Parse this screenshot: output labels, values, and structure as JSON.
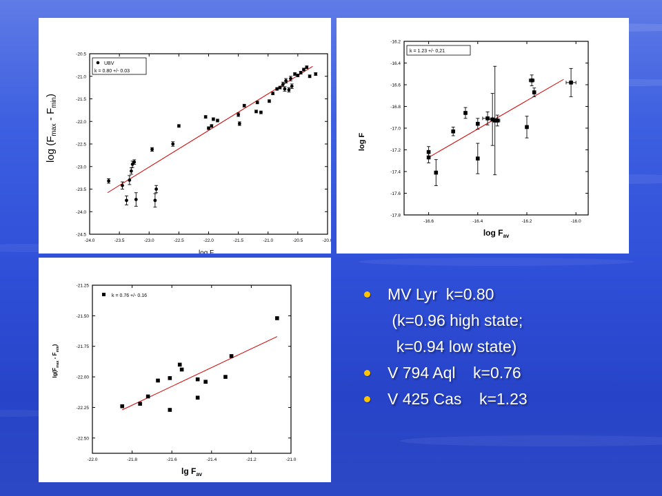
{
  "slide": {
    "background": "#3552d8",
    "accent_bullet": "#ffc400",
    "fit_color": "#d40000"
  },
  "chart_data": [
    {
      "id": "mvlyr",
      "type": "scatter",
      "xlabel_main": "log F",
      "xlabel_sub": "av",
      "ylabel_parts": [
        "log (F",
        "max",
        " - F",
        "min",
        ")"
      ],
      "xlim": [
        -24.0,
        -20.0
      ],
      "ylim": [
        -24.5,
        -20.5
      ],
      "xticks": [
        -24.0,
        -23.5,
        -23.0,
        -22.5,
        -22.0,
        -21.5,
        -21.0,
        -20.5,
        -20.0
      ],
      "xtick_labels": [
        "-24.0",
        "-23.5",
        "-23.0",
        "-22.5",
        "-22.0",
        "-21.5",
        "-21.0",
        "-20.5",
        "-20.0"
      ],
      "yticks": [
        -24.5,
        -24.0,
        -23.5,
        -23.0,
        -22.5,
        -22.0,
        -21.5,
        -21.0,
        -20.5
      ],
      "ytick_labels": [
        "-24.5",
        "-24.0",
        "-23.5",
        "-23.0",
        "-22.5",
        "-22.0",
        "-21.5",
        "-21.0",
        "-20.5"
      ],
      "legend": [
        "UBV",
        "k = 0.80 +/- 0.03"
      ],
      "marker": "circle",
      "points": [
        {
          "x": -23.68,
          "y": -23.32,
          "ey": 0.05
        },
        {
          "x": -23.45,
          "y": -23.42,
          "ey": 0.08
        },
        {
          "x": -23.38,
          "y": -23.75,
          "ey": 0.1
        },
        {
          "x": -23.33,
          "y": -23.3,
          "ey": 0.1
        },
        {
          "x": -23.3,
          "y": -23.1,
          "ey": 0.07
        },
        {
          "x": -23.28,
          "y": -22.95,
          "ey": 0.07
        },
        {
          "x": -23.25,
          "y": -22.9,
          "ey": 0.05
        },
        {
          "x": -23.22,
          "y": -23.73,
          "ey": 0.15
        },
        {
          "x": -22.95,
          "y": -22.62,
          "ey": 0.04
        },
        {
          "x": -22.9,
          "y": -23.75,
          "ey": 0.15
        },
        {
          "x": -22.88,
          "y": -23.5,
          "ey": 0.08
        },
        {
          "x": -22.6,
          "y": -22.5,
          "ey": 0.05
        },
        {
          "x": -22.5,
          "y": -22.1,
          "ey": 0.03
        },
        {
          "x": -22.05,
          "y": -21.9,
          "ey": 0.03
        },
        {
          "x": -22.0,
          "y": -22.15,
          "ey": 0.03
        },
        {
          "x": -21.95,
          "y": -22.1,
          "ey": 0.03
        },
        {
          "x": -21.92,
          "y": -21.95,
          "ey": 0.03
        },
        {
          "x": -21.85,
          "y": -21.98,
          "ey": 0.03
        },
        {
          "x": -21.5,
          "y": -21.85,
          "ey": 0.04
        },
        {
          "x": -21.48,
          "y": -22.05,
          "ey": 0.04
        },
        {
          "x": -21.4,
          "y": -21.65,
          "ey": 0.03
        },
        {
          "x": -21.2,
          "y": -21.78,
          "ey": 0.03
        },
        {
          "x": -21.18,
          "y": -21.58,
          "ey": 0.03
        },
        {
          "x": -21.12,
          "y": -21.8,
          "ey": 0.03
        },
        {
          "x": -20.98,
          "y": -21.55,
          "ey": 0.03
        },
        {
          "x": -20.92,
          "y": -21.38,
          "ey": 0.03
        },
        {
          "x": -20.85,
          "y": -21.28,
          "ey": 0.03
        },
        {
          "x": -20.8,
          "y": -21.25,
          "ey": 0.03
        },
        {
          "x": -20.75,
          "y": -21.18,
          "ey": 0.05
        },
        {
          "x": -20.72,
          "y": -21.28,
          "ey": 0.05
        },
        {
          "x": -20.7,
          "y": -21.1,
          "ey": 0.05
        },
        {
          "x": -20.65,
          "y": -21.3,
          "ey": 0.05
        },
        {
          "x": -20.62,
          "y": -21.05,
          "ey": 0.05
        },
        {
          "x": -20.6,
          "y": -21.22,
          "ey": 0.05
        },
        {
          "x": -20.55,
          "y": -20.95,
          "ey": 0.03
        },
        {
          "x": -20.5,
          "y": -20.98,
          "ey": 0.03
        },
        {
          "x": -20.45,
          "y": -20.92,
          "ey": 0.03
        },
        {
          "x": -20.4,
          "y": -20.85,
          "ey": 0.03
        },
        {
          "x": -20.35,
          "y": -20.8,
          "ey": 0.03
        },
        {
          "x": -20.3,
          "y": -21.0,
          "ey": 0.03
        },
        {
          "x": -20.2,
          "y": -20.95,
          "ey": 0.03
        }
      ],
      "fit": [
        [
          -23.7,
          -23.58
        ],
        [
          -20.25,
          -20.78
        ]
      ]
    },
    {
      "id": "v425cas",
      "type": "scatter",
      "xlabel_main": "log F",
      "xlabel_sub": "av",
      "ylabel_parts": [
        "log",
        " F"
      ],
      "xlim": [
        -16.7,
        -15.95
      ],
      "ylim": [
        -17.8,
        -16.2
      ],
      "xticks": [
        -16.6,
        -16.4,
        -16.2,
        -16.0
      ],
      "xtick_labels": [
        "-16.6",
        "-16.4",
        "-16.2",
        "-16.0"
      ],
      "yticks": [
        -17.8,
        -17.6,
        -17.4,
        -17.2,
        -17.0,
        -16.8,
        -16.6,
        -16.4,
        -16.2
      ],
      "ytick_labels": [
        "-17.8",
        "-17.6",
        "-17.4",
        "-17.2",
        "-17.0",
        "-16.8",
        "-16.6",
        "-16.4",
        "-16.2"
      ],
      "legend": [
        "k = 1.23 +/- 0,21"
      ],
      "marker": "square",
      "points": [
        {
          "x": -16.6,
          "y": -17.22,
          "ey": 0.05,
          "ex": 0.004
        },
        {
          "x": -16.6,
          "y": -17.27,
          "ey": 0.05,
          "ex": 0.004
        },
        {
          "x": -16.57,
          "y": -17.41,
          "ey": 0.12,
          "ex": 0.004
        },
        {
          "x": -16.5,
          "y": -17.03,
          "ey": 0.04,
          "ex": 0.006
        },
        {
          "x": -16.45,
          "y": -16.86,
          "ey": 0.05,
          "ex": 0.006
        },
        {
          "x": -16.4,
          "y": -16.96,
          "ey": 0.05,
          "ex": 0.004
        },
        {
          "x": -16.4,
          "y": -17.28,
          "ey": 0.14,
          "ex": 0.004
        },
        {
          "x": -16.36,
          "y": -16.91,
          "ey": 0.06,
          "ex": 0.02
        },
        {
          "x": -16.34,
          "y": -16.92,
          "ey": 0.24,
          "ex": 0.02
        },
        {
          "x": -16.33,
          "y": -16.93,
          "ey": 0.5,
          "ex": 0.01
        },
        {
          "x": -16.32,
          "y": -16.93,
          "ey": 0.05,
          "ex": 0.01
        },
        {
          "x": -16.2,
          "y": -16.99,
          "ey": 0.1,
          "ex": 0.005
        },
        {
          "x": -16.18,
          "y": -16.56,
          "ey": 0.05,
          "ex": 0.01
        },
        {
          "x": -16.17,
          "y": -16.67,
          "ey": 0.04,
          "ex": 0.005
        },
        {
          "x": -16.02,
          "y": -16.58,
          "ey": 0.13,
          "ex": 0.02
        }
      ],
      "fit": [
        [
          -16.6,
          -17.27
        ],
        [
          -16.05,
          -16.55
        ]
      ]
    },
    {
      "id": "v794aql",
      "type": "scatter",
      "xlabel_main": "lg F",
      "xlabel_sub": "av",
      "ylabel_parts": [
        "lg(F",
        "max",
        " - F",
        "min",
        ")"
      ],
      "xlim": [
        -22.0,
        -21.0
      ],
      "ylim": [
        -22.625,
        -21.25
      ],
      "xticks": [
        -22.0,
        -21.8,
        -21.6,
        -21.4,
        -21.2,
        -21.0
      ],
      "xtick_labels": [
        "-22.0",
        "-21.8",
        "-21.6",
        "-21.4",
        "-21.2",
        "-21.0"
      ],
      "yticks": [
        -22.5,
        -22.25,
        -22.0,
        -21.75,
        -21.5,
        -21.25
      ],
      "ytick_labels": [
        "-22.50",
        "-22.25",
        "-22.00",
        "-21.75",
        "-21.50",
        "-21.25"
      ],
      "legend": [
        "k = 0.76 +/- 0.16"
      ],
      "marker": "square",
      "points": [
        {
          "x": -21.85,
          "y": -22.24
        },
        {
          "x": -21.76,
          "y": -22.22
        },
        {
          "x": -21.72,
          "y": -22.16
        },
        {
          "x": -21.67,
          "y": -22.03
        },
        {
          "x": -21.61,
          "y": -22.27
        },
        {
          "x": -21.61,
          "y": -22.01
        },
        {
          "x": -21.56,
          "y": -21.9
        },
        {
          "x": -21.55,
          "y": -21.94
        },
        {
          "x": -21.47,
          "y": -22.02
        },
        {
          "x": -21.47,
          "y": -22.17
        },
        {
          "x": -21.43,
          "y": -22.04
        },
        {
          "x": -21.33,
          "y": -22.0
        },
        {
          "x": -21.3,
          "y": -21.83
        },
        {
          "x": -21.07,
          "y": -21.52
        }
      ],
      "fit": [
        [
          -21.85,
          -22.27
        ],
        [
          -21.07,
          -21.67
        ]
      ]
    }
  ],
  "bullets": [
    {
      "text": "MV Lyr  k=0.80",
      "bullet": true
    },
    {
      "text": " (k=0.96 high state;",
      "bullet": false
    },
    {
      "text": "  k=0.94 low state)",
      "bullet": false
    },
    {
      "text": "V 794 Aql    k=0.76",
      "bullet": true
    },
    {
      "text": "V 425 Cas    k=1.23",
      "bullet": true
    }
  ]
}
